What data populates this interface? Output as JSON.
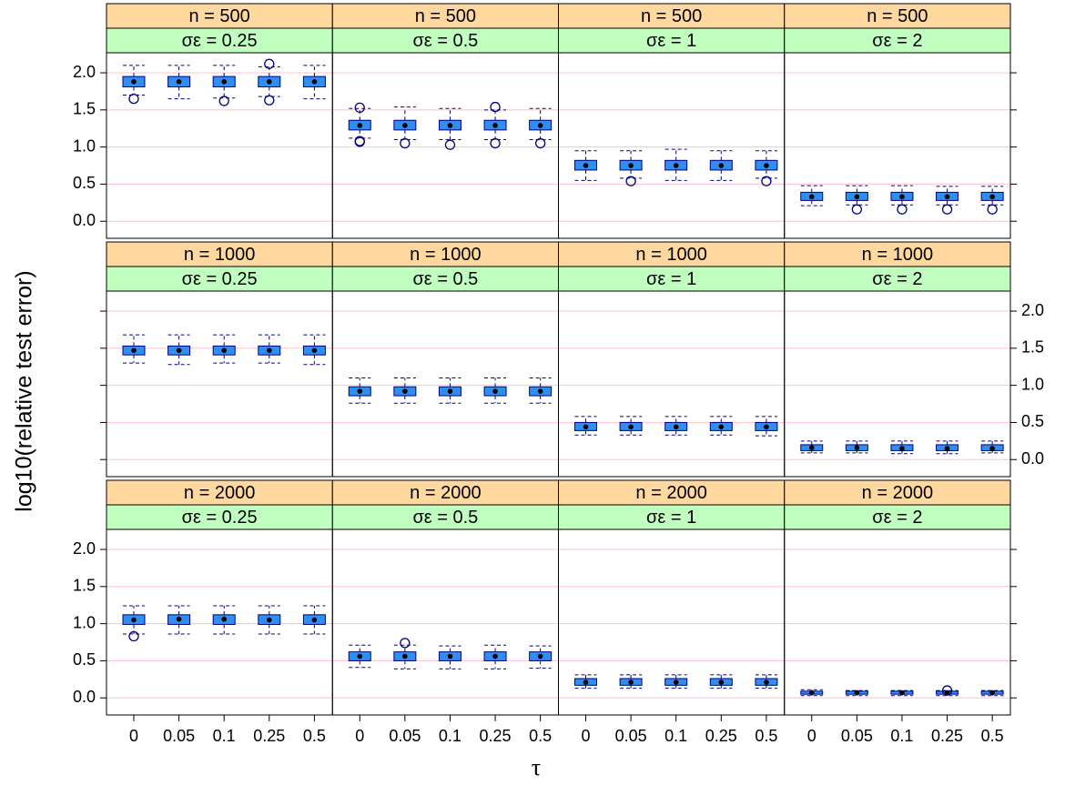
{
  "chart_data": {
    "type": "box",
    "xlabel": "τ",
    "ylabel": "log10(relative test error)",
    "categories": [
      "0",
      "0.05",
      "0.1",
      "0.25",
      "0.5"
    ],
    "ylim": [
      -0.23,
      2.27
    ],
    "yticks": [
      {
        "value": 0,
        "label": "0.0"
      },
      0.5,
      {
        "value": 1,
        "label": "1.0"
      },
      1.5,
      {
        "value": 2,
        "label": "2.0"
      }
    ],
    "grid": true,
    "box_color": "#2f8ff0",
    "line_color": "#000080",
    "strip_colors": [
      "#ffd8a0",
      "#c1ffc1"
    ],
    "panels": [
      {
        "strips": [
          "n = 500",
          "σε = 0.25"
        ],
        "boxes": [
          [
            1.7,
            1.81,
            1.88,
            1.95,
            2.1
          ],
          [
            1.65,
            1.81,
            1.88,
            1.95,
            2.1
          ],
          [
            1.66,
            1.81,
            1.88,
            1.95,
            2.1
          ],
          [
            1.68,
            1.81,
            1.88,
            1.95,
            2.08
          ],
          [
            1.65,
            1.81,
            1.88,
            1.95,
            2.1
          ]
        ],
        "outliers": [
          [
            1.65
          ],
          [],
          [
            1.62
          ],
          [
            2.12,
            1.63
          ],
          []
        ]
      },
      {
        "strips": [
          "n = 500",
          "σε = 0.5"
        ],
        "boxes": [
          [
            1.12,
            1.23,
            1.29,
            1.36,
            1.52
          ],
          [
            1.1,
            1.23,
            1.29,
            1.36,
            1.54
          ],
          [
            1.1,
            1.23,
            1.29,
            1.36,
            1.52
          ],
          [
            1.1,
            1.23,
            1.29,
            1.36,
            1.5
          ],
          [
            1.1,
            1.23,
            1.29,
            1.36,
            1.52
          ]
        ],
        "outliers": [
          [
            1.53,
            1.08,
            1.07
          ],
          [
            1.05
          ],
          [
            1.03
          ],
          [
            1.54,
            1.05
          ],
          [
            1.05
          ]
        ]
      },
      {
        "strips": [
          "n = 500",
          "σε = 1"
        ],
        "boxes": [
          [
            0.55,
            0.69,
            0.75,
            0.82,
            0.95
          ],
          [
            0.58,
            0.69,
            0.75,
            0.82,
            0.95
          ],
          [
            0.55,
            0.69,
            0.75,
            0.82,
            0.97
          ],
          [
            0.55,
            0.69,
            0.75,
            0.82,
            0.95
          ],
          [
            0.58,
            0.69,
            0.75,
            0.82,
            0.95
          ]
        ],
        "outliers": [
          [],
          [
            0.54
          ],
          [],
          [],
          [
            0.54
          ]
        ]
      },
      {
        "strips": [
          "n = 500",
          "σε = 2"
        ],
        "boxes": [
          [
            0.21,
            0.28,
            0.33,
            0.39,
            0.48
          ],
          [
            0.22,
            0.28,
            0.33,
            0.39,
            0.48
          ],
          [
            0.22,
            0.28,
            0.33,
            0.39,
            0.48
          ],
          [
            0.22,
            0.28,
            0.33,
            0.39,
            0.47
          ],
          [
            0.22,
            0.28,
            0.33,
            0.39,
            0.47
          ]
        ],
        "outliers": [
          [],
          [
            0.16
          ],
          [
            0.16
          ],
          [
            0.16
          ],
          [
            0.16
          ]
        ]
      },
      {
        "strips": [
          "n = 1000",
          "σε = 0.25"
        ],
        "boxes": [
          [
            1.3,
            1.41,
            1.47,
            1.53,
            1.68
          ],
          [
            1.28,
            1.41,
            1.47,
            1.53,
            1.68
          ],
          [
            1.3,
            1.41,
            1.47,
            1.53,
            1.68
          ],
          [
            1.3,
            1.41,
            1.47,
            1.53,
            1.68
          ],
          [
            1.28,
            1.41,
            1.47,
            1.53,
            1.68
          ]
        ],
        "outliers": [
          [],
          [],
          [],
          [],
          []
        ]
      },
      {
        "strips": [
          "n = 1000",
          "σε = 0.5"
        ],
        "boxes": [
          [
            0.76,
            0.86,
            0.92,
            0.98,
            1.1
          ],
          [
            0.76,
            0.86,
            0.92,
            0.98,
            1.1
          ],
          [
            0.76,
            0.86,
            0.92,
            0.98,
            1.1
          ],
          [
            0.76,
            0.86,
            0.92,
            0.98,
            1.1
          ],
          [
            0.76,
            0.86,
            0.92,
            0.98,
            1.1
          ]
        ],
        "outliers": [
          [],
          [],
          [],
          [],
          []
        ]
      },
      {
        "strips": [
          "n = 1000",
          "σε = 1"
        ],
        "boxes": [
          [
            0.33,
            0.39,
            0.44,
            0.5,
            0.58
          ],
          [
            0.33,
            0.39,
            0.44,
            0.5,
            0.58
          ],
          [
            0.33,
            0.39,
            0.44,
            0.5,
            0.58
          ],
          [
            0.33,
            0.39,
            0.44,
            0.5,
            0.58
          ],
          [
            0.32,
            0.39,
            0.44,
            0.5,
            0.58
          ]
        ],
        "outliers": [
          [],
          [],
          [],
          [],
          []
        ]
      },
      {
        "strips": [
          "n = 1000",
          "σε = 2"
        ],
        "boxes": [
          [
            0.09,
            0.12,
            0.16,
            0.2,
            0.25
          ],
          [
            0.09,
            0.12,
            0.16,
            0.2,
            0.25
          ],
          [
            0.08,
            0.12,
            0.15,
            0.2,
            0.25
          ],
          [
            0.08,
            0.12,
            0.15,
            0.2,
            0.25
          ],
          [
            0.09,
            0.12,
            0.15,
            0.2,
            0.25
          ]
        ],
        "outliers": [
          [],
          [],
          [],
          [],
          []
        ]
      },
      {
        "strips": [
          "n = 2000",
          "σε = 0.25"
        ],
        "boxes": [
          [
            0.86,
            0.99,
            1.05,
            1.12,
            1.24
          ],
          [
            0.86,
            0.99,
            1.06,
            1.12,
            1.24
          ],
          [
            0.86,
            0.99,
            1.06,
            1.12,
            1.24
          ],
          [
            0.86,
            0.99,
            1.05,
            1.12,
            1.24
          ],
          [
            0.86,
            0.99,
            1.05,
            1.12,
            1.24
          ]
        ],
        "outliers": [
          [
            0.83
          ],
          [],
          [],
          [],
          []
        ]
      },
      {
        "strips": [
          "n = 2000",
          "σε = 0.5"
        ],
        "boxes": [
          [
            0.41,
            0.5,
            0.56,
            0.62,
            0.71
          ],
          [
            0.39,
            0.5,
            0.56,
            0.62,
            0.71
          ],
          [
            0.39,
            0.5,
            0.56,
            0.62,
            0.7
          ],
          [
            0.39,
            0.5,
            0.56,
            0.62,
            0.71
          ],
          [
            0.4,
            0.5,
            0.56,
            0.62,
            0.7
          ]
        ],
        "outliers": [
          [],
          [
            0.74
          ],
          [],
          [],
          []
        ]
      },
      {
        "strips": [
          "n = 2000",
          "σε = 1"
        ],
        "boxes": [
          [
            0.13,
            0.17,
            0.21,
            0.26,
            0.31
          ],
          [
            0.13,
            0.17,
            0.21,
            0.26,
            0.31
          ],
          [
            0.13,
            0.17,
            0.21,
            0.26,
            0.31
          ],
          [
            0.13,
            0.17,
            0.21,
            0.26,
            0.31
          ],
          [
            0.13,
            0.17,
            0.21,
            0.26,
            0.31
          ]
        ],
        "outliers": [
          [],
          [],
          [],
          [],
          []
        ]
      },
      {
        "strips": [
          "n = 2000",
          "σε = 2"
        ],
        "boxes": [
          [
            0.03,
            0.05,
            0.07,
            0.09,
            0.11
          ],
          [
            0.03,
            0.05,
            0.07,
            0.09,
            0.1
          ],
          [
            0.03,
            0.05,
            0.07,
            0.09,
            0.1
          ],
          [
            0.03,
            0.05,
            0.07,
            0.09,
            0.1
          ],
          [
            0.03,
            0.05,
            0.07,
            0.09,
            0.1
          ]
        ],
        "outliers": [
          [],
          [],
          [],
          [
            0.1
          ],
          []
        ]
      }
    ]
  }
}
